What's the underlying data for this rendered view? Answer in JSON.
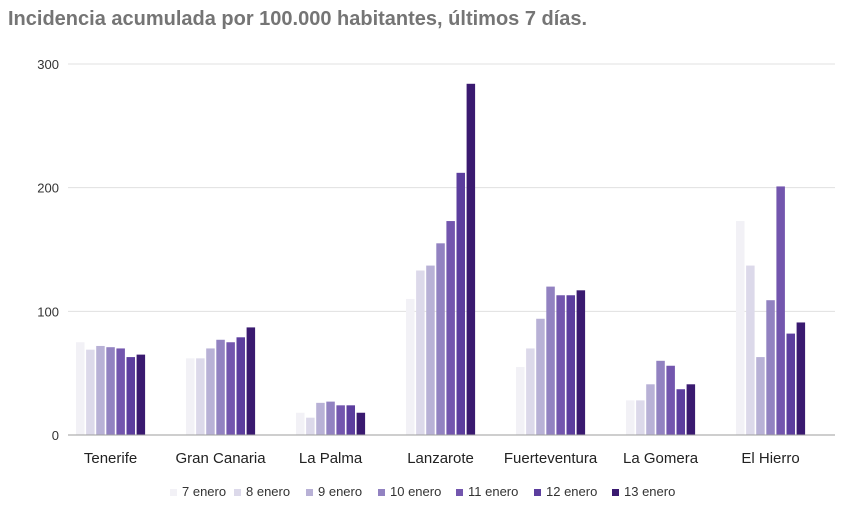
{
  "chart_data": {
    "type": "bar",
    "title": "Incidencia acumulada por 100.000 habitantes, últimos 7 días.",
    "xlabel": "",
    "ylabel": "",
    "ylim": [
      0,
      300
    ],
    "yticks": [
      0,
      100,
      200,
      300
    ],
    "grid": true,
    "legend_position": "bottom",
    "categories": [
      "Tenerife",
      "Gran Canaria",
      "La Palma",
      "Lanzarote",
      "Fuerteventura",
      "La Gomera",
      "El Hierro"
    ],
    "series": [
      {
        "name": "7 enero",
        "color": "#f2f1f6",
        "values": [
          75,
          62,
          18,
          110,
          55,
          28,
          173
        ]
      },
      {
        "name": "8 enero",
        "color": "#dcd9ea",
        "values": [
          69,
          62,
          14,
          133,
          70,
          28,
          137
        ]
      },
      {
        "name": "9 enero",
        "color": "#b8b1d6",
        "values": [
          72,
          70,
          26,
          137,
          94,
          41,
          63
        ]
      },
      {
        "name": "10 enero",
        "color": "#9282c1",
        "values": [
          71,
          77,
          27,
          155,
          120,
          60,
          109
        ]
      },
      {
        "name": "11 enero",
        "color": "#7356ae",
        "values": [
          70,
          75,
          24,
          173,
          113,
          56,
          201
        ]
      },
      {
        "name": "12 enero",
        "color": "#5c3e9e",
        "values": [
          63,
          79,
          24,
          212,
          113,
          37,
          82
        ]
      },
      {
        "name": "13 enero",
        "color": "#3a1a70",
        "values": [
          65,
          87,
          18,
          284,
          117,
          41,
          91
        ]
      }
    ]
  }
}
